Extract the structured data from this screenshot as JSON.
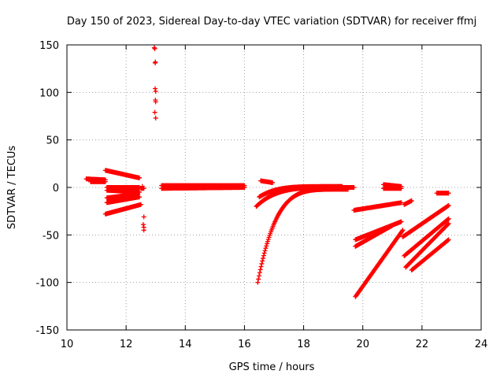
{
  "chart_data": {
    "type": "scatter",
    "title": "Day 150 of 2023, Sidereal Day-to-day VTEC variation (SDTVAR) for receiver ffmj",
    "xlabel": "GPS time / hours",
    "ylabel": "SDTVAR / TECUs",
    "xlim": [
      10,
      24
    ],
    "ylim": [
      -150,
      150
    ],
    "xticks": [
      "10",
      "12",
      "14",
      "16",
      "18",
      "20",
      "22",
      "24"
    ],
    "yticks": [
      "150",
      "100",
      "50",
      "0",
      "-50",
      "-100",
      "-150"
    ],
    "grid": true,
    "marker": "+",
    "color": "#ff0000",
    "series": [
      {
        "segments": [
          {
            "x0": 10.65,
            "x1": 11.3,
            "y0": 9,
            "y1": 8,
            "shape": "linear"
          },
          {
            "x0": 10.8,
            "x1": 11.3,
            "y0": 6,
            "y1": 6,
            "shape": "linear"
          },
          {
            "x0": 11.3,
            "x1": 12.45,
            "y0": 18,
            "y1": 10,
            "shape": "linear"
          },
          {
            "x0": 11.35,
            "x1": 12.45,
            "y0": 0,
            "y1": 0,
            "shape": "linear"
          },
          {
            "x0": 11.35,
            "x1": 12.45,
            "y0": -3,
            "y1": -5,
            "shape": "linear"
          },
          {
            "x0": 11.35,
            "x1": 12.4,
            "y0": -11,
            "y1": -7,
            "shape": "linear"
          },
          {
            "x0": 11.35,
            "x1": 12.45,
            "y0": -16,
            "y1": -10,
            "shape": "linear"
          },
          {
            "x0": 11.3,
            "x1": 12.5,
            "y0": -28,
            "y1": -18,
            "shape": "linear"
          },
          {
            "x0": 12.5,
            "x1": 12.6,
            "y0": -1,
            "y1": -1,
            "shape": "linear"
          },
          {
            "x0": 13.2,
            "x1": 16.0,
            "y0": 2,
            "y1": 2,
            "shape": "linear"
          },
          {
            "x0": 13.2,
            "x1": 16.0,
            "y0": -1,
            "y1": 0,
            "shape": "linear"
          },
          {
            "x0": 16.55,
            "x1": 16.95,
            "y0": 7,
            "y1": 5,
            "shape": "linear"
          },
          {
            "x0": 16.4,
            "x1": 19.7,
            "y0": -20,
            "y1": 0,
            "shape": "curve"
          },
          {
            "x0": 16.45,
            "x1": 19.5,
            "y0": -100,
            "y1": -2,
            "shape": "curve"
          },
          {
            "x0": 16.5,
            "x1": 19.3,
            "y0": -10,
            "y1": 1,
            "shape": "curve"
          },
          {
            "x0": 19.7,
            "x1": 21.3,
            "y0": -24,
            "y1": -16,
            "shape": "linear"
          },
          {
            "x0": 19.75,
            "x1": 21.3,
            "y0": -55,
            "y1": -36,
            "shape": "linear"
          },
          {
            "x0": 19.75,
            "x1": 21.0,
            "y0": -62,
            "y1": -40,
            "shape": "linear"
          },
          {
            "x0": 19.75,
            "x1": 21.35,
            "y0": -115,
            "y1": -45,
            "shape": "linear"
          },
          {
            "x0": 20.7,
            "x1": 21.3,
            "y0": 3,
            "y1": 1,
            "shape": "linear"
          },
          {
            "x0": 20.7,
            "x1": 21.3,
            "y0": -1,
            "y1": -1,
            "shape": "linear"
          },
          {
            "x0": 21.4,
            "x1": 21.65,
            "y0": -18,
            "y1": -14,
            "shape": "linear"
          },
          {
            "x0": 21.35,
            "x1": 22.9,
            "y0": -52,
            "y1": -19,
            "shape": "linear"
          },
          {
            "x0": 21.4,
            "x1": 22.9,
            "y0": -72,
            "y1": -33,
            "shape": "linear"
          },
          {
            "x0": 21.45,
            "x1": 22.9,
            "y0": -84,
            "y1": -38,
            "shape": "linear"
          },
          {
            "x0": 21.65,
            "x1": 22.9,
            "y0": -87,
            "y1": -55,
            "shape": "linear"
          },
          {
            "x0": 22.5,
            "x1": 22.9,
            "y0": -6,
            "y1": -6,
            "shape": "linear"
          }
        ],
        "points": [
          [
            12.95,
            147
          ],
          [
            12.97,
            146
          ],
          [
            12.98,
            131
          ],
          [
            12.99,
            132
          ],
          [
            12.98,
            104
          ],
          [
            13.0,
            101
          ],
          [
            12.99,
            92
          ],
          [
            13.0,
            90
          ],
          [
            12.97,
            79
          ],
          [
            13.0,
            73
          ],
          [
            12.6,
            -31
          ],
          [
            12.58,
            -39
          ],
          [
            12.6,
            -42
          ],
          [
            12.6,
            -45
          ],
          [
            12.55,
            1
          ]
        ]
      }
    ]
  }
}
